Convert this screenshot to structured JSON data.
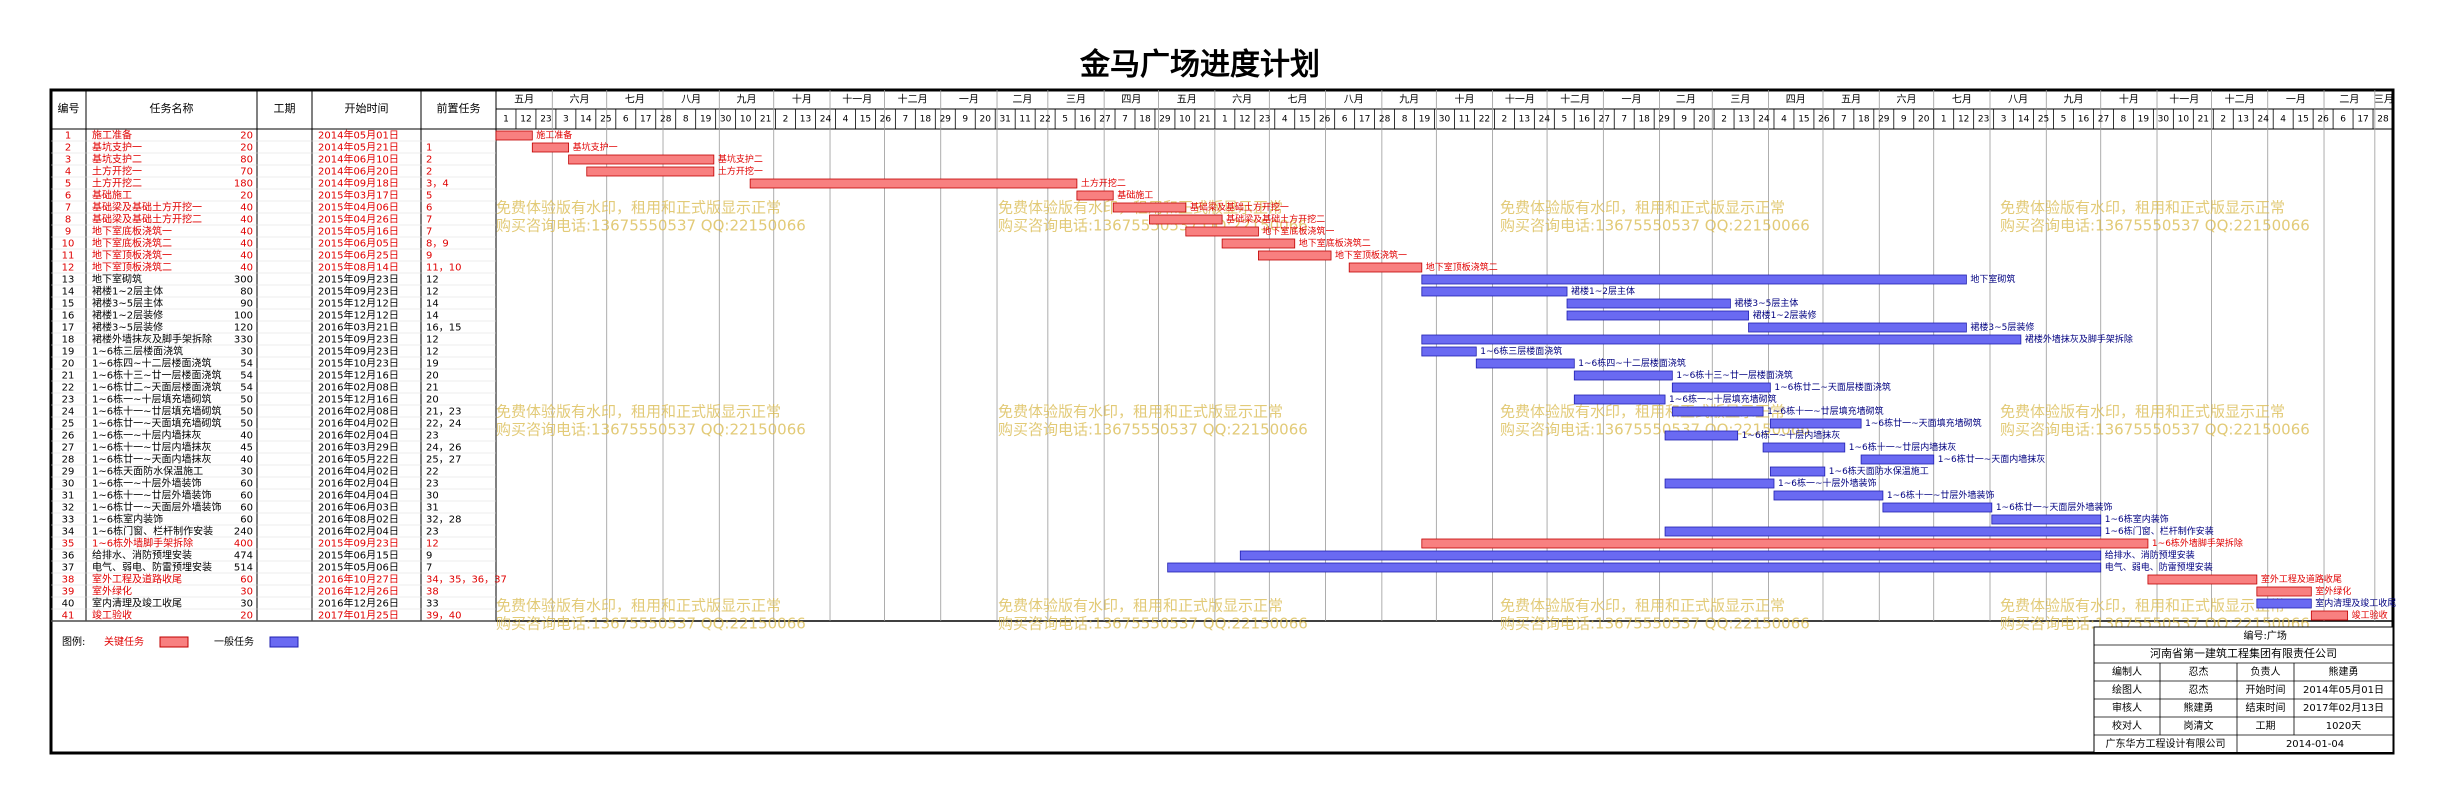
{
  "title": "金马广场进度计划",
  "columns": [
    "编号",
    "任务名称",
    "工期",
    "开始时间",
    "前置任务"
  ],
  "timescale": {
    "months": [
      "五月",
      "六月",
      "七月",
      "八月",
      "九月",
      "十月",
      "十一月",
      "十二月",
      "一月",
      "二月",
      "三月",
      "四月",
      "五月",
      "六月",
      "七月",
      "八月",
      "九月",
      "十月",
      "十一月",
      "十二月",
      "一月",
      "二月",
      "三月",
      "四月",
      "五月",
      "六月",
      "七月",
      "八月",
      "九月",
      "十月",
      "十一月",
      "十二月",
      "一月",
      "二月",
      "三月"
    ],
    "days": [
      1,
      12,
      23,
      3,
      14,
      25,
      6,
      17,
      28,
      8,
      19,
      30,
      10,
      21,
      2,
      13,
      24,
      4,
      15,
      26,
      7,
      18,
      29,
      9,
      20,
      31,
      11,
      22,
      5,
      16,
      27,
      7,
      18,
      29,
      10,
      21,
      1,
      12,
      23,
      4,
      15,
      26,
      6,
      17,
      28,
      8,
      19,
      30,
      11,
      22,
      2,
      13,
      24,
      5,
      16,
      27,
      7,
      18,
      29,
      9,
      20,
      2,
      13,
      24,
      4,
      15,
      26,
      7,
      18,
      29,
      9,
      20,
      1,
      12,
      23,
      3,
      14,
      25,
      5,
      16,
      27,
      8,
      19,
      30,
      10,
      21,
      2,
      13,
      24,
      4,
      15,
      26,
      6,
      17,
      28
    ]
  },
  "colors": {
    "critical": "#f88080",
    "normal": "#6a6af2"
  },
  "tasks": [
    {
      "id": 1,
      "name": "施工准备",
      "duration": 20,
      "start": "2014年05月01日",
      "critical": true
    },
    {
      "id": 2,
      "name": "基坑支护一",
      "duration": 20,
      "start": "2014年05月21日",
      "predecessors": "1",
      "critical": true
    },
    {
      "id": 3,
      "name": "基坑支护二",
      "duration": 80,
      "start": "2014年06月10日",
      "predecessors": "2",
      "critical": true
    },
    {
      "id": 4,
      "name": "土方开挖一",
      "duration": 70,
      "start": "2014年06月20日",
      "predecessors": "2",
      "critical": true
    },
    {
      "id": 5,
      "name": "土方开挖二",
      "duration": 180,
      "start": "2014年09月18日",
      "predecessors": "3，4",
      "critical": true
    },
    {
      "id": 6,
      "name": "基础施工",
      "duration": 20,
      "start": "2015年03月17日",
      "predecessors": "5",
      "critical": true
    },
    {
      "id": 7,
      "name": "基础梁及基础土方开挖一",
      "duration": 40,
      "start": "2015年04月06日",
      "predecessors": "6",
      "critical": true
    },
    {
      "id": 8,
      "name": "基础梁及基础土方开挖二",
      "duration": 40,
      "start": "2015年04月26日",
      "predecessors": "7",
      "critical": true
    },
    {
      "id": 9,
      "name": "地下室底板浇筑一",
      "duration": 40,
      "start": "2015年05月16日",
      "predecessors": "7",
      "critical": true
    },
    {
      "id": 10,
      "name": "地下室底板浇筑二",
      "duration": 40,
      "start": "2015年06月05日",
      "predecessors": "8，9",
      "critical": true
    },
    {
      "id": 11,
      "name": "地下室顶板浇筑一",
      "duration": 40,
      "start": "2015年06月25日",
      "predecessors": "9",
      "critical": true
    },
    {
      "id": 12,
      "name": "地下室顶板浇筑二",
      "duration": 40,
      "start": "2015年08月14日",
      "predecessors": "11，10",
      "critical": true
    },
    {
      "id": 13,
      "name": "地下室砌筑",
      "duration": 300,
      "start": "2015年09月23日",
      "predecessors": "12",
      "critical": false
    },
    {
      "id": 14,
      "name": "裙楼1~2层主体",
      "duration": 80,
      "start": "2015年09月23日",
      "predecessors": "12",
      "critical": false
    },
    {
      "id": 15,
      "name": "裙楼3~5层主体",
      "duration": 90,
      "start": "2015年12月12日",
      "predecessors": "14",
      "critical": false
    },
    {
      "id": 16,
      "name": "裙楼1~2层装修",
      "duration": 100,
      "start": "2015年12月12日",
      "predecessors": "14",
      "critical": false
    },
    {
      "id": 17,
      "name": "裙楼3~5层装修",
      "duration": 120,
      "start": "2016年03月21日",
      "predecessors": "16，15",
      "critical": false
    },
    {
      "id": 18,
      "name": "裙楼外墙抹灰及脚手架拆除",
      "duration": 330,
      "start": "2015年09月23日",
      "predecessors": "12",
      "critical": false
    },
    {
      "id": 19,
      "name": "1~6栋三层楼面浇筑",
      "duration": 30,
      "start": "2015年09月23日",
      "predecessors": "12",
      "critical": false
    },
    {
      "id": 20,
      "name": "1~6栋四~十二层楼面浇筑",
      "duration": 54,
      "start": "2015年10月23日",
      "predecessors": "19",
      "critical": false
    },
    {
      "id": 21,
      "name": "1~6栋十三~廿一层楼面浇筑",
      "duration": 54,
      "start": "2015年12月16日",
      "predecessors": "20",
      "critical": false
    },
    {
      "id": 22,
      "name": "1~6栋廿二~天面层楼面浇筑",
      "duration": 54,
      "start": "2016年02月08日",
      "predecessors": "21",
      "critical": false
    },
    {
      "id": 23,
      "name": "1~6栋一~十层填充墙砌筑",
      "duration": 50,
      "start": "2015年12月16日",
      "predecessors": "20",
      "critical": false
    },
    {
      "id": 24,
      "name": "1~6栋十一~廿层填充墙砌筑",
      "duration": 50,
      "start": "2016年02月08日",
      "predecessors": "21，23",
      "critical": false
    },
    {
      "id": 25,
      "name": "1~6栋廿一~天面填充墙砌筑",
      "duration": 50,
      "start": "2016年04月02日",
      "predecessors": "22，24",
      "critical": false
    },
    {
      "id": 26,
      "name": "1~6栋一~十层内墙抹灰",
      "duration": 40,
      "start": "2016年02月04日",
      "predecessors": "23",
      "critical": false
    },
    {
      "id": 27,
      "name": "1~6栋十一~廿层内墙抹灰",
      "duration": 45,
      "start": "2016年03月29日",
      "predecessors": "24，26",
      "critical": false
    },
    {
      "id": 28,
      "name": "1~6栋廿一~天面内墙抹灰",
      "duration": 40,
      "start": "2016年05月22日",
      "predecessors": "25，27",
      "critical": false
    },
    {
      "id": 29,
      "name": "1~6栋天面防水保温施工",
      "duration": 30,
      "start": "2016年04月02日",
      "predecessors": "22",
      "critical": false
    },
    {
      "id": 30,
      "name": "1~6栋一~十层外墙装饰",
      "duration": 60,
      "start": "2016年02月04日",
      "predecessors": "23",
      "critical": false
    },
    {
      "id": 31,
      "name": "1~6栋十一~廿层外墙装饰",
      "duration": 60,
      "start": "2016年04月04日",
      "predecessors": "30",
      "critical": false
    },
    {
      "id": 32,
      "name": "1~6栋廿一~天面层外墙装饰",
      "duration": 60,
      "start": "2016年06月03日",
      "predecessors": "31",
      "critical": false
    },
    {
      "id": 33,
      "name": "1~6栋室内装饰",
      "duration": 60,
      "start": "2016年08月02日",
      "predecessors": "32，28",
      "critical": false
    },
    {
      "id": 34,
      "name": "1~6栋门窗、栏杆制作安装",
      "duration": 240,
      "start": "2016年02月04日",
      "predecessors": "23",
      "critical": false
    },
    {
      "id": 35,
      "name": "1~6栋外墙脚手架拆除",
      "duration": 400,
      "start": "2015年09月23日",
      "predecessors": "12",
      "critical": true
    },
    {
      "id": 36,
      "name": "给排水、消防预埋安装",
      "duration": 474,
      "start": "2015年06月15日",
      "predecessors": "9",
      "critical": false
    },
    {
      "id": 37,
      "name": "电气、弱电、防雷预埋安装",
      "duration": 514,
      "start": "2015年05月06日",
      "predecessors": "7",
      "critical": false
    },
    {
      "id": 38,
      "name": "室外工程及道路收尾",
      "duration": 60,
      "start": "2016年10月27日",
      "predecessors": "34，35，36，37",
      "critical": true
    },
    {
      "id": 39,
      "name": "室外绿化",
      "duration": 30,
      "start": "2016年12月26日",
      "predecessors": "38",
      "critical": true
    },
    {
      "id": 40,
      "name": "室内清理及竣工收尾",
      "duration": 30,
      "start": "2016年12月26日",
      "predecessors": "33",
      "critical": false
    },
    {
      "id": 41,
      "name": "竣工验收",
      "duration": 20,
      "start": "2017年01月25日",
      "predecessors": "39，40",
      "critical": true
    }
  ],
  "legend": {
    "label": "图例:",
    "critical": "关键任务",
    "normal": "一般任务"
  },
  "watermark": {
    "line1": "免费体验版有水印，租用和正式版显示正常",
    "line2": "购买咨询电话:13675550537 QQ:22150066"
  },
  "info": {
    "top": "编号:广场",
    "company": "河南省第一建筑工程集团有限责任公司",
    "rows": [
      [
        "编制人",
        "忍杰",
        "负责人",
        "熊建勇"
      ],
      [
        "绘图人",
        "忍杰",
        "开始时间",
        "2014年05月01日"
      ],
      [
        "审核人",
        "熊建勇",
        "结束时间",
        "2017年02月13日"
      ],
      [
        "校对人",
        "岗清文",
        "工期",
        "1020天"
      ]
    ],
    "footer": [
      "广东华方工程设计有限公司",
      "2014-01-04"
    ]
  }
}
